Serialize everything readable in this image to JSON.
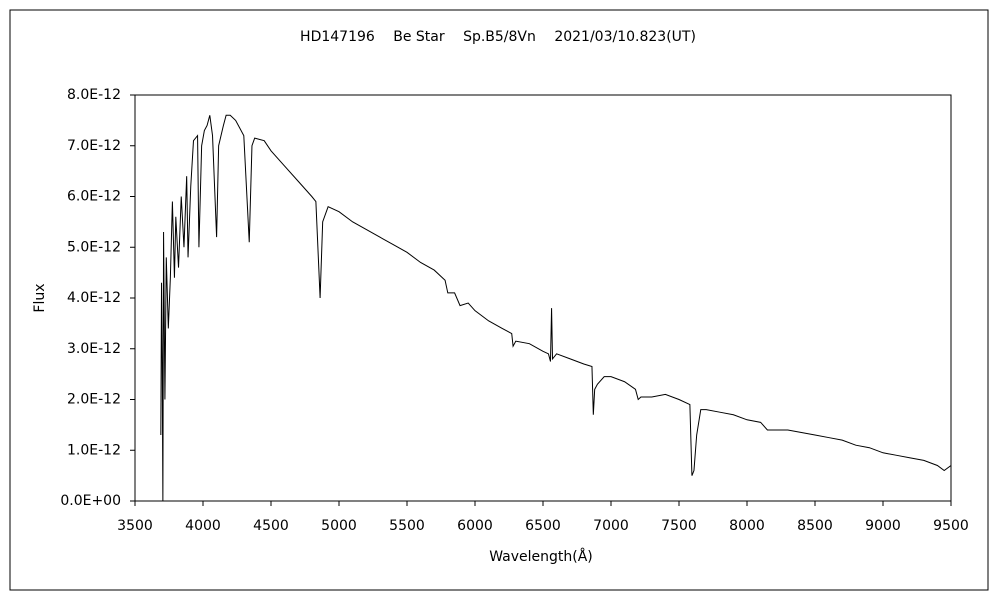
{
  "chart_data": {
    "type": "line",
    "title": "HD147196　 Be Star　 Sp.B5/8Vn　 2021/03/10.823(UT)",
    "x_label": "Wavelength(Å)",
    "y_label": "Flux",
    "color": "#000000",
    "xlim": [
      3500,
      9500
    ],
    "xticks": [
      3500,
      4000,
      4500,
      5000,
      5500,
      6000,
      6500,
      7000,
      7500,
      8000,
      8500,
      9000,
      9500
    ],
    "ylim": [
      0,
      8e-12
    ],
    "yticks": [
      {
        "value": 0,
        "label": "0.0E+00"
      },
      {
        "value": 1e-12,
        "label": "1.0E-12"
      },
      {
        "value": 2e-12,
        "label": "2.0E-12"
      },
      {
        "value": 3e-12,
        "label": "3.0E-12"
      },
      {
        "value": 4e-12,
        "label": "4.0E-12"
      },
      {
        "value": 5e-12,
        "label": "5.0E-12"
      },
      {
        "value": 6e-12,
        "label": "6.0E-12"
      },
      {
        "value": 7e-12,
        "label": "7.0E-12"
      },
      {
        "value": 8e-12,
        "label": "8.0E-12"
      }
    ],
    "x": [
      3690,
      3695,
      3700,
      3705,
      3710,
      3720,
      3730,
      3745,
      3760,
      3775,
      3790,
      3800,
      3820,
      3840,
      3860,
      3880,
      3890,
      3910,
      3930,
      3960,
      3970,
      3990,
      4010,
      4030,
      4050,
      4070,
      4100,
      4115,
      4150,
      4170,
      4200,
      4240,
      4300,
      4340,
      4360,
      4380,
      4450,
      4500,
      4600,
      4700,
      4800,
      4830,
      4861,
      4880,
      4920,
      5000,
      5100,
      5200,
      5300,
      5400,
      5500,
      5600,
      5700,
      5780,
      5800,
      5850,
      5890,
      5950,
      6000,
      6100,
      6200,
      6270,
      6280,
      6300,
      6400,
      6500,
      6540,
      6555,
      6563,
      6570,
      6600,
      6700,
      6800,
      6860,
      6870,
      6880,
      6900,
      6950,
      7000,
      7100,
      7180,
      7200,
      7220,
      7300,
      7400,
      7500,
      7580,
      7595,
      7610,
      7630,
      7660,
      7700,
      7800,
      7900,
      8000,
      8100,
      8150,
      8200,
      8300,
      8400,
      8500,
      8600,
      8700,
      8800,
      8900,
      9000,
      9100,
      9200,
      9300,
      9400,
      9450,
      9500
    ],
    "values": [
      1.3e-12,
      4.3e-12,
      2.8e-12,
      0,
      5.3e-12,
      2e-12,
      4.8e-12,
      3.4e-12,
      4.4e-12,
      5.9e-12,
      4.4e-12,
      5.6e-12,
      4.6e-12,
      6e-12,
      5e-12,
      6.4e-12,
      4.8e-12,
      6.2e-12,
      7.1e-12,
      7.2e-12,
      5e-12,
      7e-12,
      7.3e-12,
      7.4e-12,
      7.6e-12,
      7.2e-12,
      5.2e-12,
      7e-12,
      7.4e-12,
      7.6e-12,
      7.6e-12,
      7.5e-12,
      7.2e-12,
      5.1e-12,
      7e-12,
      7.15e-12,
      7.1e-12,
      6.9e-12,
      6.6e-12,
      6.3e-12,
      6e-12,
      5.9e-12,
      4e-12,
      5.5e-12,
      5.8e-12,
      5.7e-12,
      5.5e-12,
      5.35e-12,
      5.2e-12,
      5.05e-12,
      4.9e-12,
      4.7e-12,
      4.55e-12,
      4.35e-12,
      4.1e-12,
      4.1e-12,
      3.85e-12,
      3.9e-12,
      3.75e-12,
      3.55e-12,
      3.4e-12,
      3.3e-12,
      3.05e-12,
      3.15e-12,
      3.1e-12,
      2.95e-12,
      2.9e-12,
      2.75e-12,
      3.8e-12,
      2.8e-12,
      2.9e-12,
      2.8e-12,
      2.7e-12,
      2.65e-12,
      1.7e-12,
      2.2e-12,
      2.3e-12,
      2.45e-12,
      2.45e-12,
      2.35e-12,
      2.2e-12,
      2e-12,
      2.05e-12,
      2.05e-12,
      2.1e-12,
      2e-12,
      1.9e-12,
      5e-13,
      6e-13,
      1.3e-12,
      1.8e-12,
      1.8e-12,
      1.75e-12,
      1.7e-12,
      1.6e-12,
      1.55e-12,
      1.4e-12,
      1.4e-12,
      1.4e-12,
      1.35e-12,
      1.3e-12,
      1.25e-12,
      1.2e-12,
      1.1e-12,
      1.05e-12,
      9.5e-13,
      9e-13,
      8.5e-13,
      8e-13,
      7e-13,
      6e-13,
      7e-13
    ]
  }
}
